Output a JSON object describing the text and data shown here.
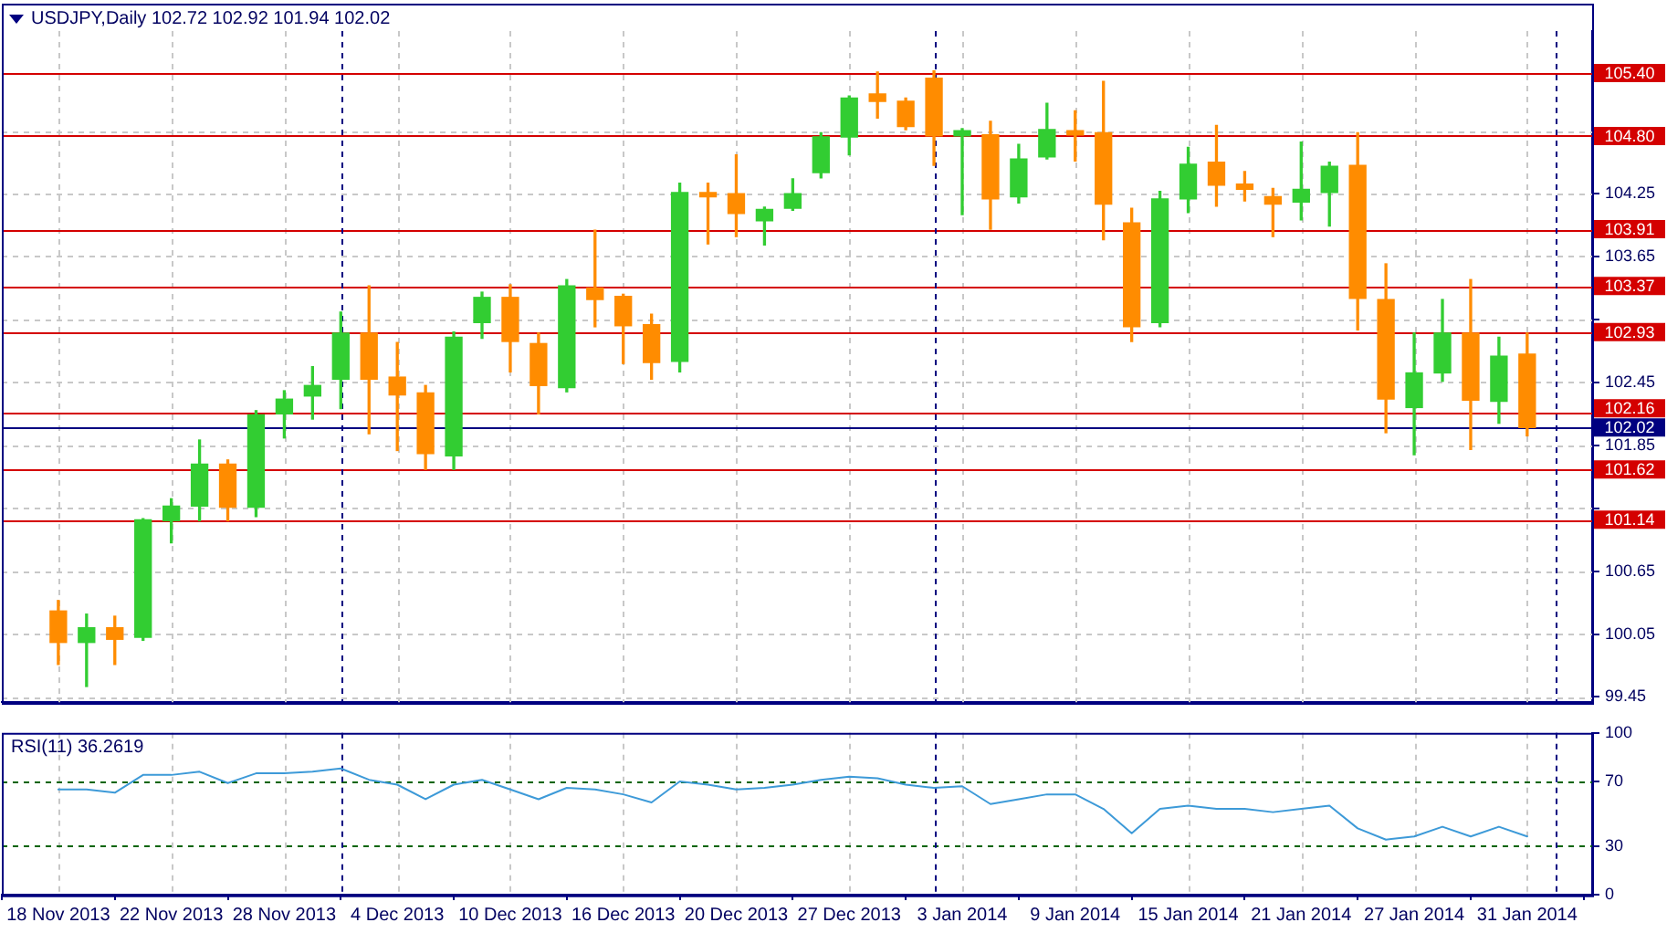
{
  "chart_data": [
    {
      "type": "candlestick",
      "title": "USDJPY,Daily 102.72 102.92 101.94 102.02",
      "categories": [
        null,
        null,
        null,
        null,
        null,
        null,
        null,
        null,
        null,
        null,
        null,
        null,
        null,
        null,
        null,
        null,
        null,
        null,
        null,
        null,
        null,
        null,
        null,
        null,
        null,
        null,
        null,
        null,
        null,
        null,
        null,
        null,
        null,
        null,
        null,
        null,
        null,
        null,
        null,
        null,
        null,
        null,
        null,
        null,
        null,
        null,
        null,
        null,
        null,
        null,
        null,
        null,
        null
      ],
      "ohlc": [
        [
          100.27,
          100.37,
          99.76,
          99.97
        ],
        [
          99.97,
          100.24,
          99.55,
          100.11
        ],
        [
          100.11,
          100.22,
          99.76,
          100.0
        ],
        [
          100.02,
          101.15,
          99.99,
          101.14
        ],
        [
          101.13,
          101.34,
          100.92,
          101.27
        ],
        [
          101.27,
          101.9,
          101.13,
          101.67
        ],
        [
          101.67,
          101.71,
          101.13,
          101.26
        ],
        [
          101.26,
          102.18,
          101.17,
          102.14
        ],
        [
          102.15,
          102.37,
          101.92,
          102.29
        ],
        [
          102.32,
          102.6,
          102.1,
          102.42
        ],
        [
          102.48,
          103.12,
          102.2,
          102.92
        ],
        [
          102.92,
          103.37,
          101.96,
          102.48
        ],
        [
          102.5,
          102.83,
          101.8,
          102.33
        ],
        [
          102.35,
          102.42,
          101.62,
          101.77
        ],
        [
          101.75,
          102.93,
          101.62,
          102.88
        ],
        [
          103.02,
          103.31,
          102.87,
          103.26
        ],
        [
          103.26,
          103.38,
          102.55,
          102.84
        ],
        [
          102.82,
          102.92,
          102.15,
          102.42
        ],
        [
          102.4,
          103.43,
          102.36,
          103.37
        ],
        [
          103.35,
          103.9,
          102.98,
          103.24
        ],
        [
          103.27,
          103.29,
          102.63,
          102.99
        ],
        [
          103.0,
          103.1,
          102.48,
          102.64
        ],
        [
          102.65,
          104.35,
          102.55,
          104.26
        ],
        [
          104.26,
          104.35,
          103.77,
          104.22
        ],
        [
          104.25,
          104.62,
          103.84,
          104.06
        ],
        [
          103.99,
          104.12,
          103.76,
          104.1
        ],
        [
          104.11,
          104.39,
          104.09,
          104.25
        ],
        [
          104.45,
          104.83,
          104.4,
          104.79
        ],
        [
          104.79,
          105.18,
          104.62,
          105.16
        ],
        [
          105.2,
          105.41,
          104.97,
          105.13
        ],
        [
          105.13,
          105.16,
          104.86,
          104.89
        ],
        [
          105.35,
          105.42,
          104.52,
          104.8
        ],
        [
          104.8,
          104.87,
          104.05,
          104.85
        ],
        [
          104.81,
          104.94,
          103.91,
          104.2
        ],
        [
          104.22,
          104.72,
          104.16,
          104.58
        ],
        [
          104.6,
          105.11,
          104.58,
          104.86
        ],
        [
          104.85,
          105.04,
          104.56,
          104.81
        ],
        [
          104.83,
          105.32,
          103.81,
          104.15
        ],
        [
          103.97,
          104.11,
          102.84,
          102.98
        ],
        [
          103.02,
          104.27,
          102.98,
          104.2
        ],
        [
          104.2,
          104.69,
          104.07,
          104.53
        ],
        [
          104.55,
          104.9,
          104.13,
          104.33
        ],
        [
          104.34,
          104.46,
          104.18,
          104.29
        ],
        [
          104.22,
          104.3,
          103.84,
          104.15
        ],
        [
          104.17,
          104.74,
          104.0,
          104.29
        ],
        [
          104.26,
          104.55,
          103.94,
          104.51
        ],
        [
          104.52,
          104.83,
          102.95,
          103.25
        ],
        [
          103.24,
          103.58,
          101.97,
          102.29
        ],
        [
          102.21,
          102.92,
          101.76,
          102.54
        ],
        [
          102.54,
          103.24,
          102.46,
          102.92
        ],
        [
          102.92,
          103.43,
          101.81,
          102.28
        ],
        [
          102.27,
          102.88,
          102.06,
          102.7
        ],
        [
          102.72,
          102.92,
          101.94,
          102.02
        ]
      ],
      "colors": [
        "#ff8c00",
        "#32cd32",
        "#ff8c00",
        "#32cd32",
        "#32cd32",
        "#32cd32",
        "#ff8c00",
        "#32cd32",
        "#32cd32",
        "#32cd32",
        "#32cd32",
        "#ff8c00",
        "#ff8c00",
        "#ff8c00",
        "#32cd32",
        "#32cd32",
        "#ff8c00",
        "#ff8c00",
        "#32cd32",
        "#ff8c00",
        "#ff8c00",
        "#ff8c00",
        "#32cd32",
        "#ff8c00",
        "#ff8c00",
        "#32cd32",
        "#32cd32",
        "#32cd32",
        "#32cd32",
        "#ff8c00",
        "#ff8c00",
        "#ff8c00",
        "#32cd32",
        "#ff8c00",
        "#32cd32",
        "#32cd32",
        "#ff8c00",
        "#ff8c00",
        "#ff8c00",
        "#32cd32",
        "#32cd32",
        "#ff8c00",
        "#ff8c00",
        "#ff8c00",
        "#32cd32",
        "#32cd32",
        "#ff8c00",
        "#ff8c00",
        "#32cd32",
        "#32cd32",
        "#ff8c00",
        "#32cd32",
        "#ff8c00"
      ],
      "ylim": [
        99.4,
        105.8
      ],
      "yticks": [
        {
          "value": 104.85,
          "label": null
        },
        104.25,
        103.65,
        {
          "value": 103.05,
          "label": null
        },
        102.45,
        101.85,
        {
          "value": 101.25,
          "label": null
        },
        100.65,
        100.05,
        99.45
      ],
      "ref_lines": [
        {
          "axis": "y",
          "value": 105.4,
          "label": "105.40",
          "color": "#d40000"
        },
        {
          "axis": "y",
          "value": 104.8,
          "label": "104.80",
          "color": "#d40000"
        },
        {
          "axis": "y",
          "value": 103.91,
          "label": "103.91",
          "color": "#d40000"
        },
        {
          "axis": "y",
          "value": 103.37,
          "label": "103.37",
          "color": "#d40000"
        },
        {
          "axis": "y",
          "value": 102.93,
          "label": "102.93",
          "color": "#d40000"
        },
        {
          "axis": "y",
          "value": 102.16,
          "label": "102.16",
          "color": "#d40000"
        },
        {
          "axis": "y",
          "value": 101.62,
          "label": "101.62",
          "color": "#d40000"
        },
        {
          "axis": "y",
          "value": 101.14,
          "label": "101.14",
          "color": "#d40000"
        },
        {
          "axis": "y",
          "value": 102.02,
          "label": "102.02",
          "color": "#000080"
        }
      ],
      "grid": true,
      "tick_labels": "y"
    },
    {
      "type": "line",
      "title": "RSI(11) 36.2619",
      "categories": [
        "18 Nov 2013",
        null,
        null,
        null,
        "22 Nov 2013",
        null,
        null,
        null,
        "28 Nov 2013",
        null,
        null,
        null,
        "4 Dec 2013",
        null,
        null,
        null,
        "10 Dec 2013",
        null,
        null,
        null,
        "16 Dec 2013",
        null,
        null,
        null,
        "20 Dec 2013",
        null,
        null,
        null,
        "27 Dec 2013",
        null,
        null,
        null,
        "3 Jan 2014",
        null,
        null,
        null,
        "9 Jan 2014",
        null,
        null,
        null,
        "15 Jan 2014",
        null,
        null,
        null,
        "21 Jan 2014",
        null,
        null,
        null,
        "27 Jan 2014",
        null,
        null,
        null,
        "31 Jan 2014"
      ],
      "series": [
        {
          "color": "#3d9ad8",
          "values": [
            65,
            65,
            63,
            74,
            74,
            76,
            69,
            75,
            75,
            76,
            78,
            71,
            68,
            59,
            68,
            71,
            65,
            59,
            66,
            65,
            62,
            57,
            70,
            68,
            65,
            66,
            68,
            71,
            73,
            72,
            68,
            66,
            67,
            56,
            59,
            62,
            62,
            53,
            38,
            53,
            55,
            53,
            53,
            51,
            53,
            55,
            41,
            34,
            36,
            42,
            36,
            42,
            36
          ]
        }
      ],
      "ylim": [
        0,
        100
      ],
      "yticks": [
        0,
        30,
        70,
        100
      ],
      "ref_lines": [
        {
          "axis": "y",
          "value": 70,
          "color": "#006400",
          "line_style": "dashed"
        },
        {
          "axis": "y",
          "value": 30,
          "color": "#006400",
          "line_style": "dashed"
        }
      ],
      "grid": "x",
      "marker": "none"
    }
  ]
}
